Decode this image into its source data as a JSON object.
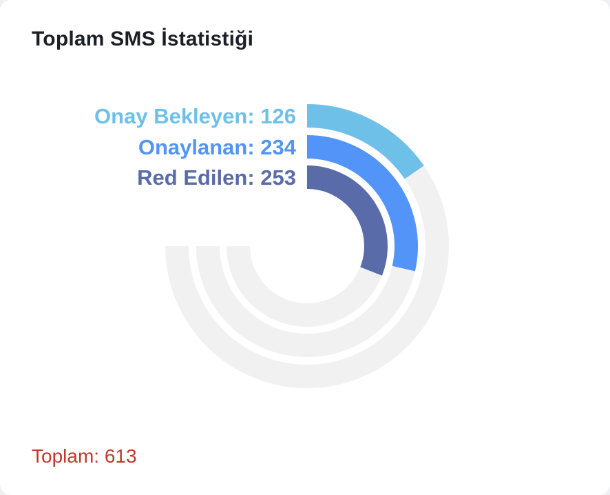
{
  "card": {
    "title": "Toplam SMS İstatistiği",
    "total_label": "Toplam: 613"
  },
  "colors": {
    "track": "#f1f1f2",
    "series": [
      "#6fc0e8",
      "#5394f8",
      "#596ba9"
    ]
  },
  "chart_data": {
    "type": "radialBar",
    "title": "Toplam SMS İstatistiği",
    "max": 613,
    "sweep_degrees": 270,
    "series": [
      {
        "label": "Onay Bekleyen: 126",
        "name": "Onay Bekleyen",
        "value": 126
      },
      {
        "label": "Onaylanan: 234",
        "name": "Onaylanan",
        "value": 234
      },
      {
        "label": "Red Edilen: 253",
        "name": "Red Edilen",
        "value": 253
      }
    ],
    "total": 613
  }
}
